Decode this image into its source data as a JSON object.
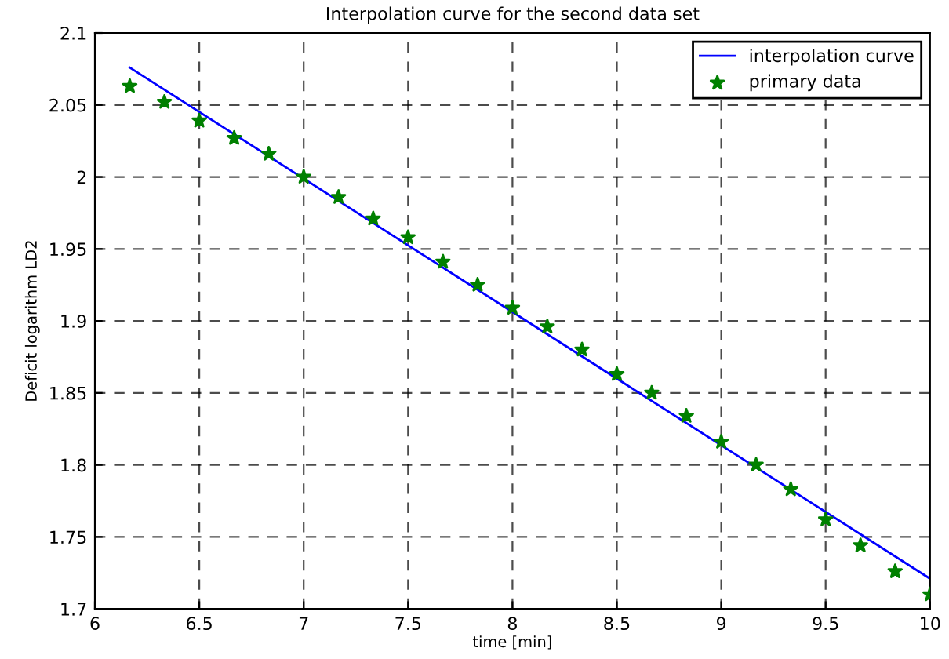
{
  "chart_data": {
    "type": "line",
    "title": "Interpolation curve for the second data set",
    "xlabel": "time [min]",
    "ylabel": "Deficit logarithm LD2",
    "xlim": [
      6,
      10
    ],
    "xticks": [
      6,
      6.5,
      7,
      7.5,
      8,
      8.5,
      9,
      9.5,
      {
        "value": 10,
        "label": "10"
      }
    ],
    "ylim": [
      1.7,
      2.1
    ],
    "yticks": [
      1.7,
      1.75,
      1.8,
      1.85,
      1.9,
      1.95,
      2,
      2.05,
      2.1
    ],
    "grid": true,
    "legend": "top right",
    "series": [
      {
        "name": "interpolation curve",
        "color": "#0000ff",
        "marker": "none",
        "line_style": "solid",
        "x": [
          6.167,
          10
        ],
        "values": [
          2.076,
          1.721
        ]
      },
      {
        "name": "primary data",
        "type": "scatter",
        "color": "#008000",
        "marker": "star",
        "x": [
          6.167,
          6.333,
          6.5,
          6.667,
          6.833,
          7,
          7.167,
          7.333,
          7.5,
          7.667,
          7.833,
          8,
          8.167,
          8.333,
          8.5,
          8.667,
          8.833,
          9,
          9.167,
          9.333,
          9.5,
          9.667,
          9.833,
          10
        ],
        "values": [
          2.063,
          2.052,
          2.039,
          2.027,
          2.016,
          2.0,
          1.986,
          1.971,
          1.958,
          1.941,
          1.925,
          1.909,
          1.896,
          1.88,
          1.863,
          1.85,
          1.834,
          1.816,
          1.8,
          1.783,
          1.762,
          1.744,
          1.726,
          1.71
        ]
      }
    ]
  }
}
